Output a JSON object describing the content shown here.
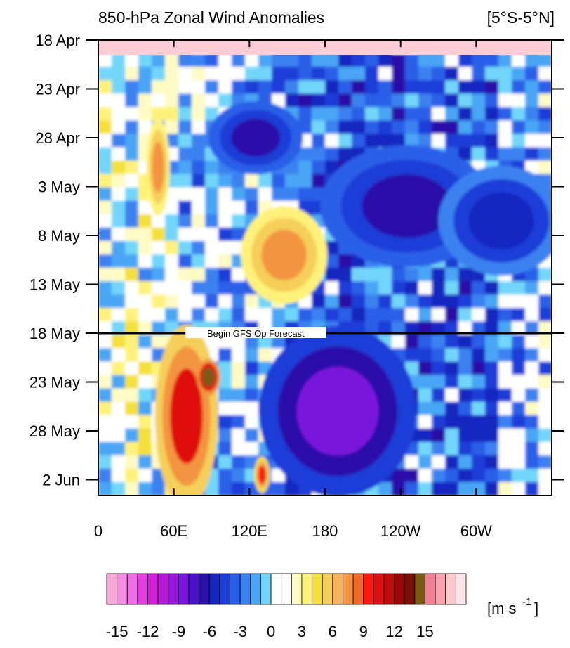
{
  "chart_data": {
    "type": "heatmap",
    "title": "850-hPa Zonal Wind Anomalies",
    "region_label": "[5°S-5°N]",
    "x_ticks": [
      "0",
      "60E",
      "120E",
      "180",
      "120W",
      "60W"
    ],
    "x_tick_values": [
      0,
      60,
      120,
      180,
      240,
      300
    ],
    "x_range": [
      0,
      360
    ],
    "y_ticks": [
      "18 Apr",
      "23 Apr",
      "28 Apr",
      "3 May",
      "8 May",
      "13 May",
      "18 May",
      "23 May",
      "28 May",
      "2 Jun"
    ],
    "y_tick_days": [
      0,
      5,
      10,
      15,
      20,
      25,
      30,
      35,
      40,
      45
    ],
    "y_range_days": [
      0,
      46.5
    ],
    "forecast_line": {
      "day": 30,
      "label": "Begin GFS Op Forecast"
    },
    "colorbar": {
      "unit_label": "[m s-1]",
      "labels": [
        "-15",
        "-12",
        "-9",
        "-6",
        "-3",
        "0",
        "3",
        "6",
        "9",
        "12",
        "15"
      ],
      "label_values": [
        -15,
        -12,
        -9,
        -6,
        -3,
        0,
        3,
        6,
        9,
        12,
        15
      ],
      "levels_min": -16,
      "step": 1,
      "colors": [
        "#f7a9d8",
        "#f58fe4",
        "#ee6ee8",
        "#e33fe0",
        "#d21fd5",
        "#b61ad8",
        "#9a16dc",
        "#7a14dc",
        "#4a10c8",
        "#2a0fa8",
        "#1528c0",
        "#1c3ed8",
        "#2a5ee8",
        "#3b82f0",
        "#4aa6f5",
        "#72d6fa",
        "#ffffff",
        "#ffffff",
        "#fffbc4",
        "#fff27a",
        "#f4e03a",
        "#f5cf5a",
        "#f5b35a",
        "#f39440",
        "#f06a23",
        "#ff1a10",
        "#e01010",
        "#c00c0c",
        "#9c0808",
        "#7a1008",
        "#7a5a12",
        "#f28092",
        "#f9a3b0",
        "#fcc9cf",
        "#fde6e9"
      ],
      "color_count": 35
    },
    "features": [
      {
        "lon_range": [
          95,
          155
        ],
        "days": [
          7,
          13
        ],
        "value": -7
      },
      {
        "lon_range": [
          190,
          300
        ],
        "days": [
          12,
          22
        ],
        "value": -7
      },
      {
        "lon_range": [
          140,
          240
        ],
        "days": [
          31,
          45
        ],
        "value": -9
      },
      {
        "lon_range": [
          50,
          90
        ],
        "days": [
          31,
          46
        ],
        "value": 10
      },
      {
        "lon_range": [
          80,
          95
        ],
        "days": [
          33,
          36
        ],
        "value": 14
      },
      {
        "lon_range": [
          40,
          55
        ],
        "days": [
          9,
          17
        ],
        "value": 7
      },
      {
        "lon_range": [
          120,
          175
        ],
        "days": [
          18,
          26
        ],
        "value": 7
      },
      {
        "lon_range": [
          125,
          135
        ],
        "days": [
          43,
          46
        ],
        "value": 9
      },
      {
        "lon_range": [
          280,
          360
        ],
        "days": [
          14,
          23
        ],
        "value": -6
      }
    ]
  }
}
